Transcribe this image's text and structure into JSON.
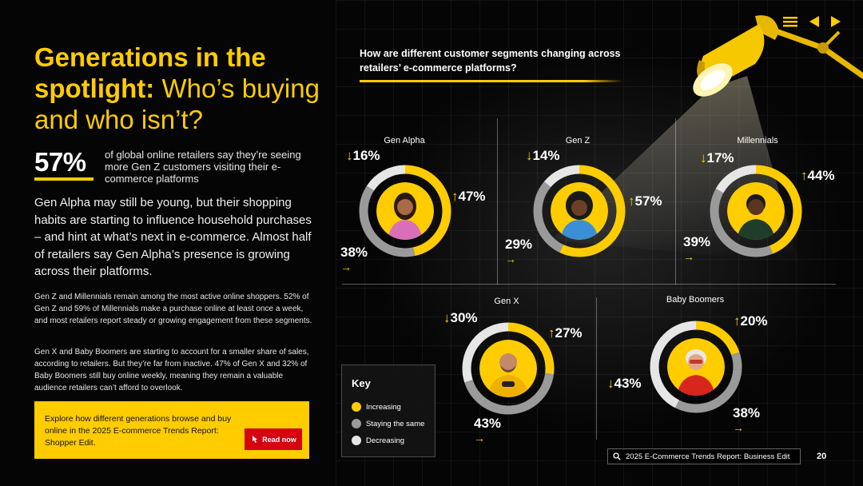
{
  "header": {
    "title_bold": "Generations in the spotlight:",
    "title_light": "Who’s buying and who isn’t?"
  },
  "stat": {
    "value": "57%",
    "text": "of global online retailers say they’re seeing more Gen Z customers visiting their e-commerce platforms"
  },
  "intro": "Gen Alpha may still be young, but their shopping habits are starting to influence household purchases – and hint at what’s next in e-commerce. Almost half of retailers say Gen Alpha’s presence is growing across their platforms.",
  "paragraphs": [
    "Gen Z and Millennials remain among the most active online shoppers. 52% of Gen Z and 59% of Millennials make a purchase online at least once a week, and most retailers report steady or growing engagement from these segments.",
    "Gen X and Baby Boomers are starting to account for a smaller share of sales, according to retailers. But they’re far from inactive. 47% of Gen X and 32% of Baby Boomers still buy online weekly, meaning they remain a valuable audience retailers can’t afford to overlook."
  ],
  "cta": {
    "text": "Explore how different generations browse and buy online in the 2025 E-commerce Trends Report: Shopper Edit.",
    "button": "Read now"
  },
  "question": "How are different customer segments changing across retailers’ e-commerce platforms?",
  "segments": [
    {
      "name": "Gen Alpha",
      "decreasing": "16%",
      "increasing": "47%",
      "same": "38%"
    },
    {
      "name": "Gen Z",
      "decreasing": "14%",
      "increasing": "57%",
      "same": "29%"
    },
    {
      "name": "Millennials",
      "decreasing": "17%",
      "increasing": "44%",
      "same": "39%"
    },
    {
      "name": "Gen X",
      "decreasing": "30%",
      "increasing": "27%",
      "same": "43%"
    },
    {
      "name": "Baby Boomers",
      "decreasing": "43%",
      "increasing": "20%",
      "same": "38%"
    }
  ],
  "arrows": {
    "down": "↓",
    "up": "↑",
    "right": "→"
  },
  "key": {
    "title": "Key",
    "items": [
      "Increasing",
      "Staying the same",
      "Decreasing"
    ]
  },
  "colors": {
    "increasing": "#ffcc00",
    "same": "#9a9a9a",
    "decreasing": "#e6e6e6",
    "accent": "#ffcc00",
    "button": "#d40511"
  },
  "footer": {
    "search_text": "2025 E-Commerce Trends Report: Business Edit",
    "page_number": "20"
  },
  "icons": [
    "menu-icon",
    "prev-arrow-icon",
    "next-arrow-icon",
    "search-icon",
    "pointer-icon",
    "lamp-icon"
  ]
}
